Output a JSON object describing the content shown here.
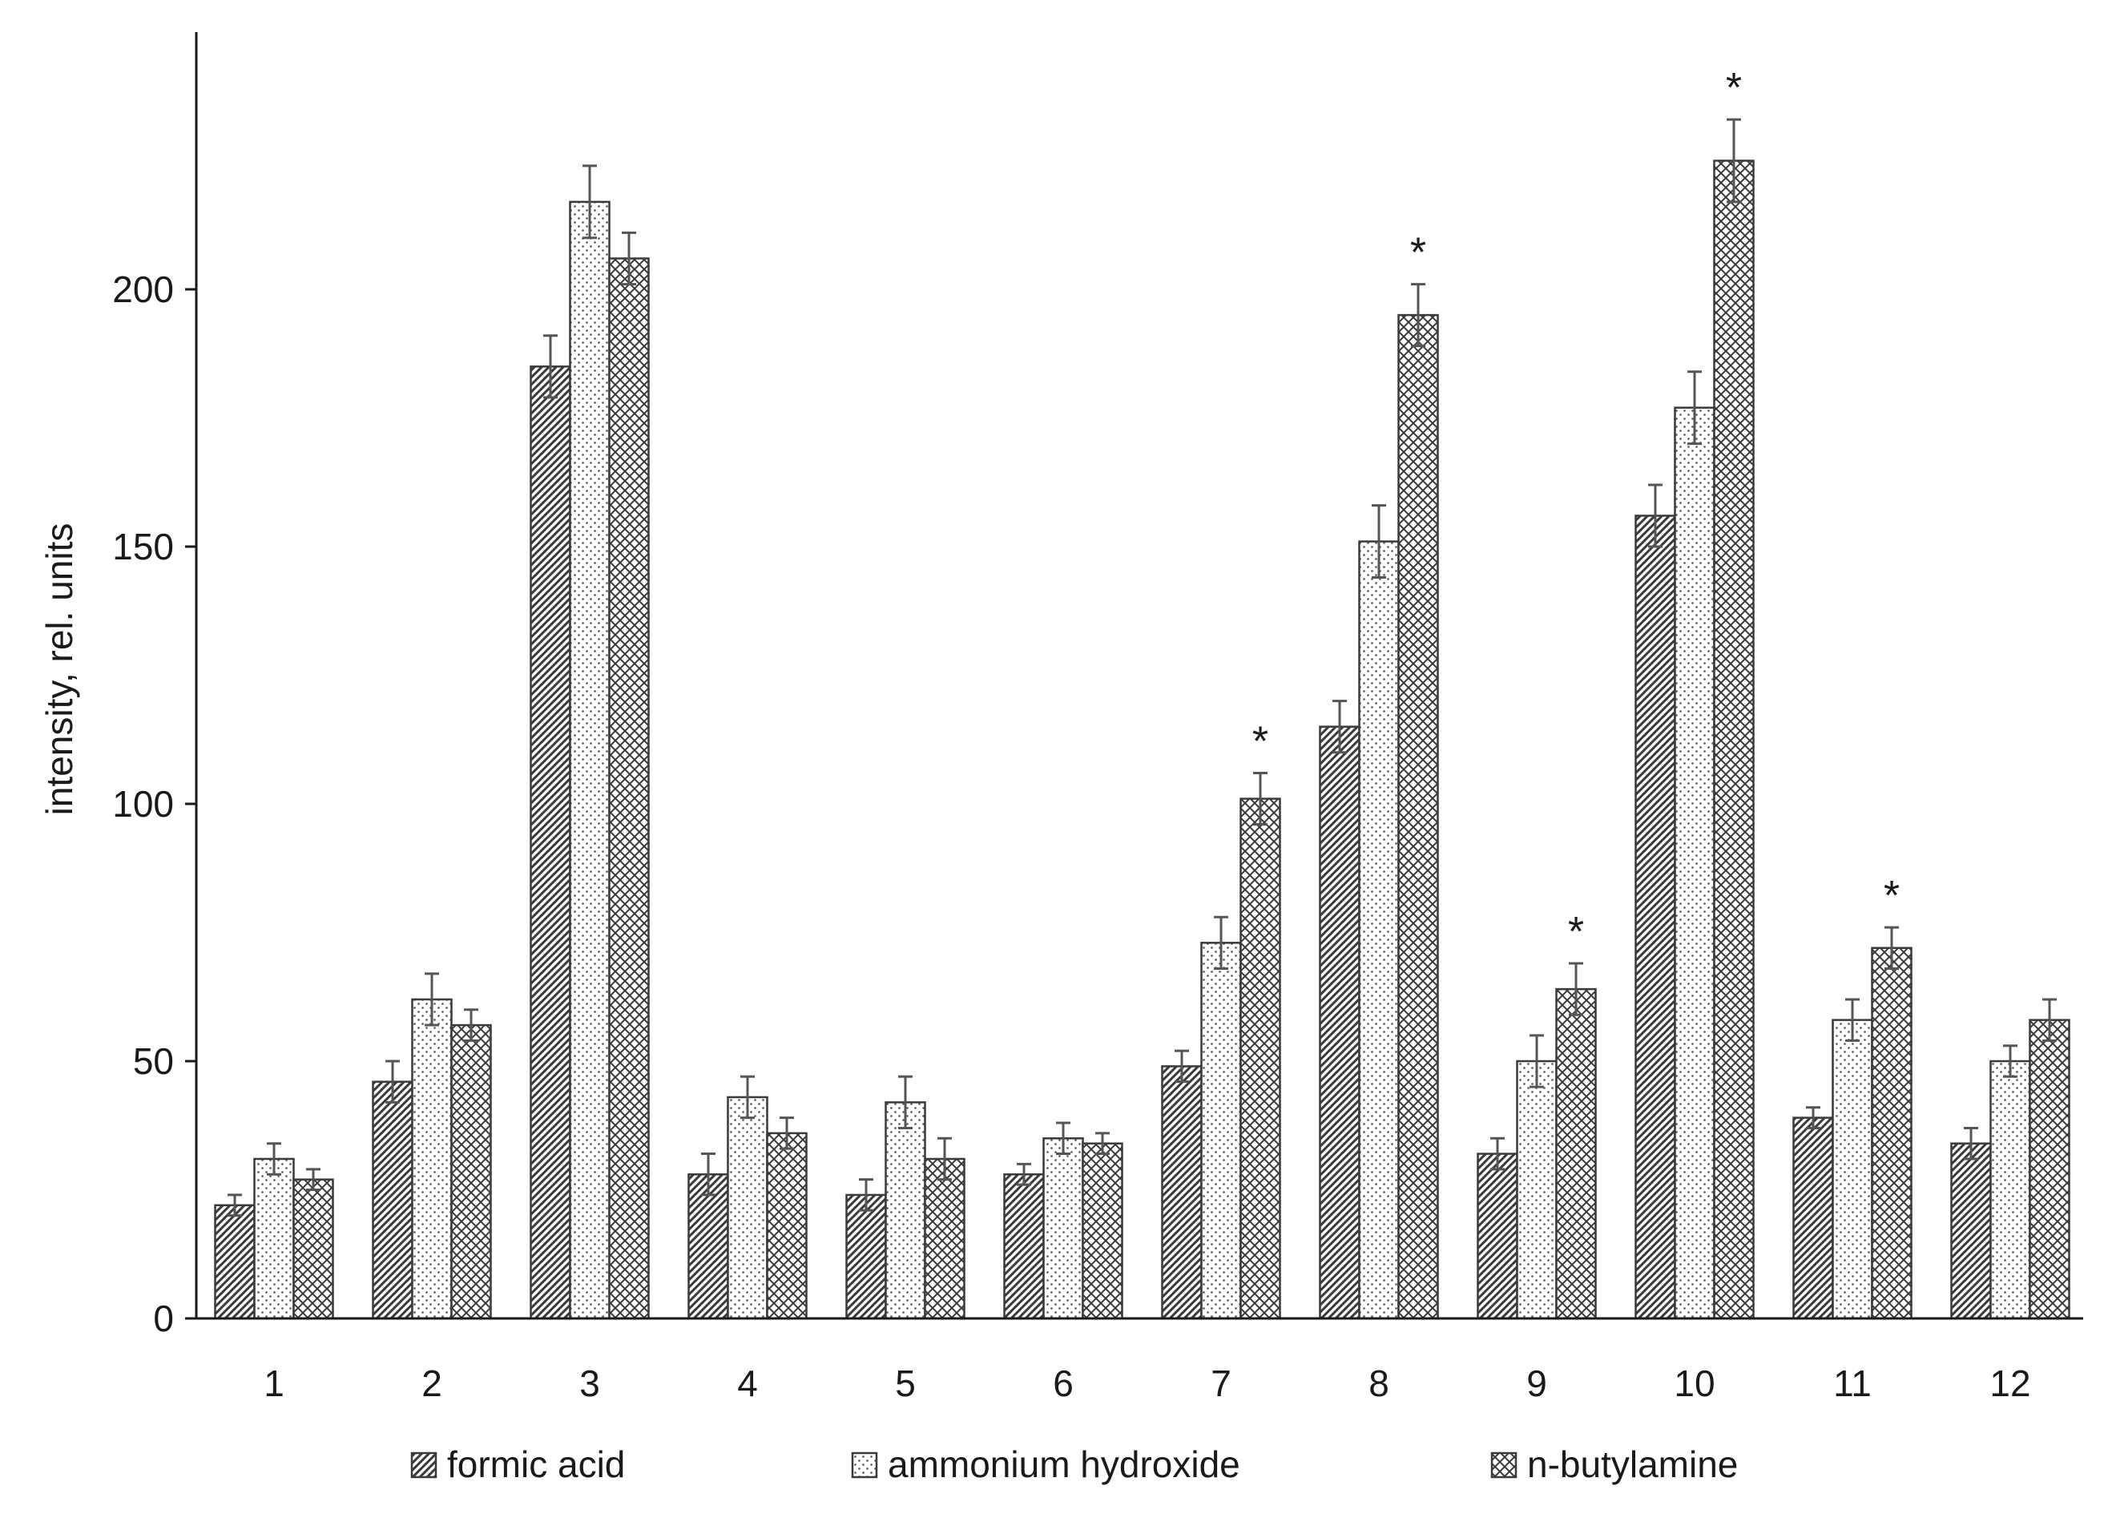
{
  "chart_data": {
    "type": "bar",
    "ylabel": "intensity, rel. units",
    "xlabel": "",
    "ylim": [
      0,
      250
    ],
    "yticks": [
      0,
      50,
      100,
      150,
      200
    ],
    "categories": [
      "1",
      "2",
      "3",
      "4",
      "5",
      "6",
      "7",
      "8",
      "9",
      "10",
      "11",
      "12"
    ],
    "series": [
      {
        "name": "formic acid",
        "pattern": "diagonal-hatch",
        "values": [
          22,
          46,
          185,
          28,
          24,
          28,
          49,
          115,
          32,
          156,
          39,
          34
        ],
        "errors": [
          2,
          4,
          6,
          4,
          3,
          2,
          3,
          5,
          3,
          6,
          2,
          3
        ]
      },
      {
        "name": "ammonium hydroxide",
        "pattern": "dots",
        "values": [
          31,
          62,
          217,
          43,
          42,
          35,
          73,
          151,
          50,
          177,
          58,
          50
        ],
        "errors": [
          3,
          5,
          7,
          4,
          5,
          3,
          5,
          7,
          5,
          7,
          4,
          3
        ]
      },
      {
        "name": "n-butylamine",
        "pattern": "cross-hatch",
        "values": [
          27,
          57,
          206,
          36,
          31,
          34,
          101,
          195,
          64,
          225,
          72,
          58
        ],
        "errors": [
          2,
          3,
          5,
          3,
          4,
          2,
          5,
          6,
          5,
          8,
          4,
          4
        ],
        "significant": [
          false,
          false,
          false,
          false,
          false,
          false,
          true,
          true,
          true,
          true,
          true,
          false
        ]
      }
    ],
    "significance_marker": "*",
    "legend": {
      "placement": "bottom",
      "entries": [
        "formic acid",
        "ammonium hydroxide",
        "n-butylamine"
      ]
    },
    "colors": {
      "bar_fill": "#ffffff",
      "pattern": "#3a3a3a",
      "axis": "#1a1a1a",
      "error_bar": "#555555"
    },
    "grid": false
  }
}
